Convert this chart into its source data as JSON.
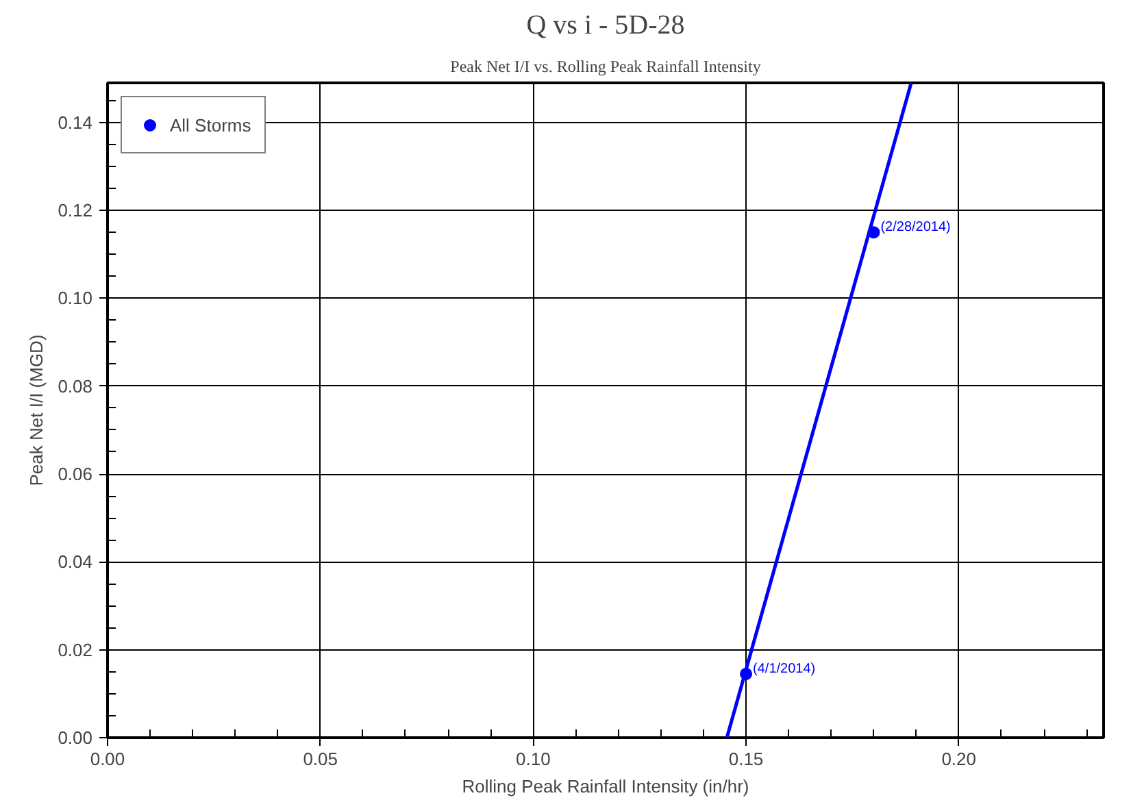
{
  "chart_data": {
    "type": "scatter",
    "title": "Q vs i - 5D-28",
    "subtitle": "Peak Net I/I vs. Rolling Peak Rainfall Intensity",
    "xlabel": "Rolling Peak Rainfall Intensity (in/hr)",
    "ylabel": "Peak Net I/I (MGD)",
    "series": [
      {
        "name": "All Storms",
        "marker": "circle",
        "color": "#0000ff",
        "x": [
          0.15,
          0.18
        ],
        "values": [
          0.0145,
          0.115
        ]
      },
      {
        "type": "line",
        "marker": "none",
        "color": "#0000ff",
        "x": [
          0.1455,
          0.1888
        ],
        "values": [
          0.0,
          0.149
        ]
      }
    ],
    "annotations": [
      {
        "text": "(4/1/2014)",
        "x": 0.15,
        "y": 0.0145
      },
      {
        "text": "(2/28/2014)",
        "x": 0.18,
        "y": 0.115
      }
    ],
    "xlim": [
      0,
      0.234
    ],
    "ylim": [
      0,
      0.149
    ],
    "xticks": [
      {
        "value": 0,
        "label": "0.00"
      },
      {
        "value": 0.01,
        "label": null
      },
      {
        "value": 0.02,
        "label": null
      },
      {
        "value": 0.03,
        "label": null
      },
      {
        "value": 0.04,
        "label": null
      },
      {
        "value": 0.05,
        "label": "0.05"
      },
      {
        "value": 0.06,
        "label": null
      },
      {
        "value": 0.07,
        "label": null
      },
      {
        "value": 0.08,
        "label": null
      },
      {
        "value": 0.09,
        "label": null
      },
      {
        "value": 0.1,
        "label": "0.10"
      },
      {
        "value": 0.11,
        "label": null
      },
      {
        "value": 0.12,
        "label": null
      },
      {
        "value": 0.13,
        "label": null
      },
      {
        "value": 0.14,
        "label": null
      },
      {
        "value": 0.15,
        "label": "0.15"
      },
      {
        "value": 0.16,
        "label": null
      },
      {
        "value": 0.17,
        "label": null
      },
      {
        "value": 0.18,
        "label": null
      },
      {
        "value": 0.19,
        "label": null
      },
      {
        "value": 0.2,
        "label": "0.20"
      },
      {
        "value": 0.21,
        "label": null
      },
      {
        "value": 0.22,
        "label": null
      },
      {
        "value": 0.23,
        "label": null
      }
    ],
    "yticks": [
      {
        "value": 0,
        "label": "0.00"
      },
      {
        "value": 0.005,
        "label": null
      },
      {
        "value": 0.01,
        "label": null
      },
      {
        "value": 0.015,
        "label": null
      },
      {
        "value": 0.02,
        "label": "0.02"
      },
      {
        "value": 0.025,
        "label": null
      },
      {
        "value": 0.03,
        "label": null
      },
      {
        "value": 0.035,
        "label": null
      },
      {
        "value": 0.04,
        "label": "0.04"
      },
      {
        "value": 0.045,
        "label": null
      },
      {
        "value": 0.05,
        "label": null
      },
      {
        "value": 0.055,
        "label": null
      },
      {
        "value": 0.06,
        "label": "0.06"
      },
      {
        "value": 0.065,
        "label": null
      },
      {
        "value": 0.07,
        "label": null
      },
      {
        "value": 0.075,
        "label": null
      },
      {
        "value": 0.08,
        "label": "0.08"
      },
      {
        "value": 0.085,
        "label": null
      },
      {
        "value": 0.09,
        "label": null
      },
      {
        "value": 0.095,
        "label": null
      },
      {
        "value": 0.1,
        "label": "0.10"
      },
      {
        "value": 0.105,
        "label": null
      },
      {
        "value": 0.11,
        "label": null
      },
      {
        "value": 0.115,
        "label": null
      },
      {
        "value": 0.12,
        "label": "0.12"
      },
      {
        "value": 0.125,
        "label": null
      },
      {
        "value": 0.13,
        "label": null
      },
      {
        "value": 0.135,
        "label": null
      },
      {
        "value": 0.14,
        "label": "0.14"
      },
      {
        "value": 0.145,
        "label": null
      }
    ],
    "grid": true,
    "legend": "top left",
    "line_style": "solid"
  }
}
